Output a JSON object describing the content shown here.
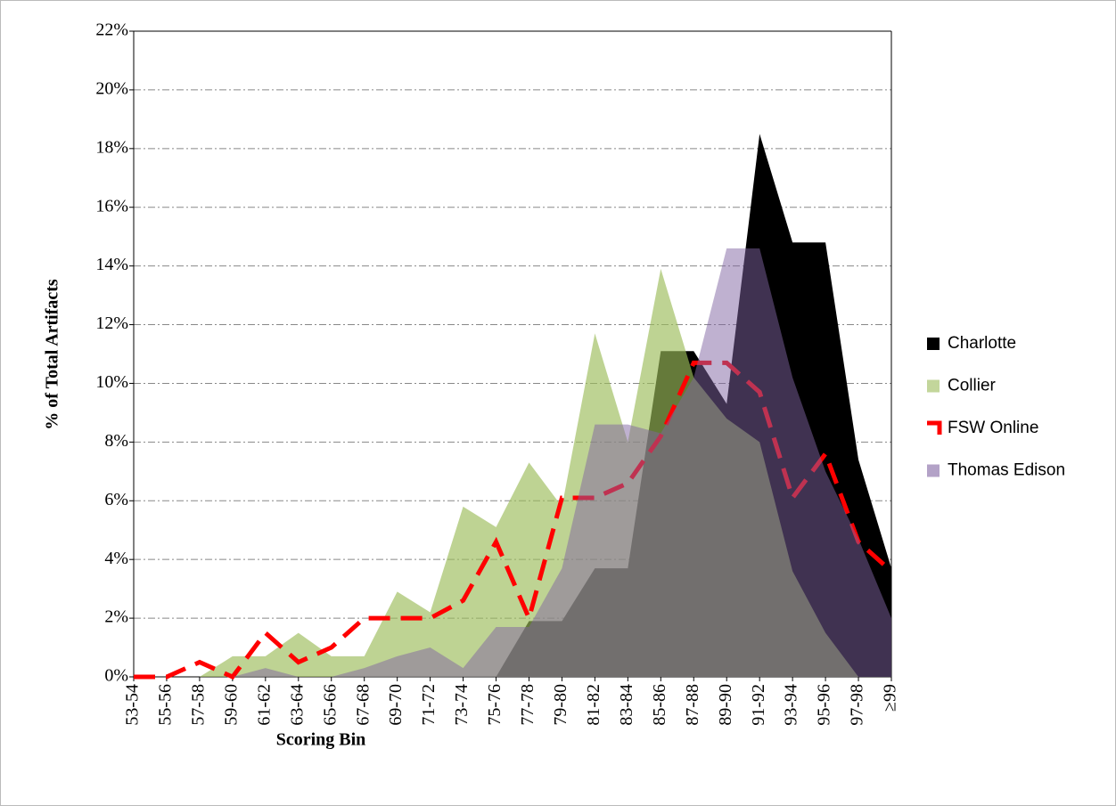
{
  "chart_data": {
    "type": "area",
    "x_label": "Scoring Bin",
    "y_label": "% of Total Artifacts",
    "categories": [
      "53-54",
      "55-56",
      "57-58",
      "59-60",
      "61-62",
      "63-64",
      "65-66",
      "67-68",
      "69-70",
      "71-72",
      "73-74",
      "75-76",
      "77-78",
      "79-80",
      "81-82",
      "83-84",
      "85-86",
      "87-88",
      "89-90",
      "91-92",
      "93-94",
      "95-96",
      "97-98",
      "≥99"
    ],
    "series": [
      {
        "name": "Charlotte",
        "color": "#000000",
        "style": "area",
        "values": [
          0,
          0,
          0,
          0,
          0,
          0,
          0,
          0,
          0,
          0,
          0,
          0,
          1.9,
          1.9,
          3.7,
          3.7,
          11.1,
          11.1,
          9.3,
          18.5,
          14.8,
          14.8,
          7.4,
          3.7
        ]
      },
      {
        "name": "Collier",
        "color": "#9bbb59",
        "style": "area",
        "values": [
          0,
          0,
          0,
          0.7,
          0.7,
          1.5,
          0.7,
          0.7,
          2.9,
          2.2,
          5.8,
          5.1,
          7.3,
          5.8,
          11.7,
          8.0,
          13.9,
          10.2,
          8.8,
          8.0,
          3.6,
          1.5,
          0,
          0
        ]
      },
      {
        "name": "FSW Online",
        "color": "#ff0000",
        "style": "dashed-line",
        "values": [
          0,
          0,
          0.5,
          0,
          1.5,
          0.5,
          1.0,
          2.0,
          2.0,
          2.0,
          2.6,
          4.6,
          2.0,
          6.1,
          6.1,
          6.6,
          8.2,
          10.7,
          10.7,
          9.7,
          6.1,
          7.6,
          4.6,
          3.6
        ]
      },
      {
        "name": "Thomas Edison",
        "color": "#8064a2",
        "style": "area",
        "values": [
          0,
          0,
          0,
          0,
          0.3,
          0,
          0,
          0.3,
          0.7,
          1.0,
          0.3,
          1.7,
          1.7,
          3.7,
          8.6,
          8.6,
          8.3,
          10.2,
          14.6,
          14.6,
          10.2,
          7.0,
          4.7,
          2.0
        ]
      }
    ],
    "ylim": [
      0,
      22
    ],
    "yticks": [
      {
        "value": 0,
        "label": "0%"
      },
      {
        "value": 2,
        "label": "2%"
      },
      {
        "value": 4,
        "label": "4%"
      },
      {
        "value": 6,
        "label": "6%"
      },
      {
        "value": 8,
        "label": "8%"
      },
      {
        "value": 10,
        "label": "10%"
      },
      {
        "value": 12,
        "label": "12%"
      },
      {
        "value": 14,
        "label": "14%"
      },
      {
        "value": 16,
        "label": "16%"
      },
      {
        "value": 18,
        "label": "18%"
      },
      {
        "value": 20,
        "label": "20%"
      },
      {
        "value": 22,
        "label": "22%"
      }
    ],
    "grid": true,
    "legend": "right"
  }
}
